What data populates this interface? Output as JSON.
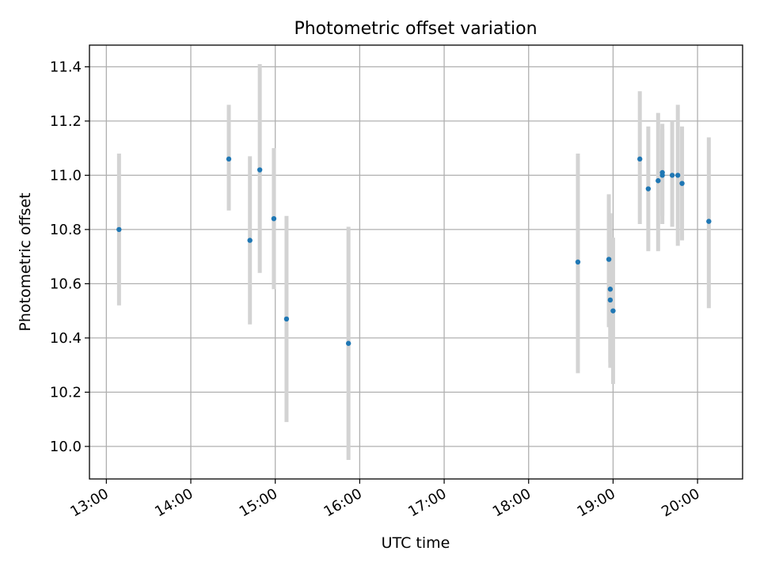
{
  "chart_data": {
    "type": "scatter",
    "title": "Photometric offset variation",
    "xlabel": "UTC time",
    "ylabel": "Photometric offset",
    "x_unit": "hour-of-day",
    "xlim": [
      "12:48",
      "20:32"
    ],
    "ylim": [
      9.88,
      11.48
    ],
    "x_ticks": [
      {
        "time": "13:00",
        "label": "13:00"
      },
      {
        "time": "14:00",
        "label": "14:00"
      },
      {
        "time": "15:00",
        "label": "15:00"
      },
      {
        "time": "16:00",
        "label": "16:00"
      },
      {
        "time": "17:00",
        "label": "17:00"
      },
      {
        "time": "18:00",
        "label": "18:00"
      },
      {
        "time": "19:00",
        "label": "19:00"
      },
      {
        "time": "20:00",
        "label": "20:00"
      }
    ],
    "y_ticks": [
      10.0,
      10.2,
      10.4,
      10.6,
      10.8,
      11.0,
      11.2,
      11.4
    ],
    "y_tick_labels": [
      "10.0",
      "10.2",
      "10.4",
      "10.6",
      "10.8",
      "11.0",
      "11.2",
      "11.4"
    ],
    "grid": true,
    "point_color": "#1f77b4",
    "errorbar_color": "#d3d3d3",
    "points": [
      {
        "x": "13:09",
        "y": 10.8,
        "ylow": 10.52,
        "yhigh": 11.08
      },
      {
        "x": "14:27",
        "y": 11.06,
        "ylow": 10.87,
        "yhigh": 11.26
      },
      {
        "x": "14:42",
        "y": 10.76,
        "ylow": 10.45,
        "yhigh": 11.07
      },
      {
        "x": "14:49",
        "y": 11.02,
        "ylow": 10.64,
        "yhigh": 11.41
      },
      {
        "x": "14:59",
        "y": 10.84,
        "ylow": 10.58,
        "yhigh": 11.1
      },
      {
        "x": "15:08",
        "y": 10.47,
        "ylow": 10.09,
        "yhigh": 10.85
      },
      {
        "x": "15:52",
        "y": 10.38,
        "ylow": 9.95,
        "yhigh": 10.81
      },
      {
        "x": "18:35",
        "y": 10.68,
        "ylow": 10.27,
        "yhigh": 11.08
      },
      {
        "x": "18:57",
        "y": 10.69,
        "ylow": 10.44,
        "yhigh": 10.93
      },
      {
        "x": "18:58",
        "y": 10.58,
        "ylow": 10.29,
        "yhigh": 10.86
      },
      {
        "x": "18:58",
        "y": 10.54,
        "ylow": 10.31,
        "yhigh": 10.76
      },
      {
        "x": "19:00",
        "y": 10.5,
        "ylow": 10.23,
        "yhigh": 10.77
      },
      {
        "x": "19:19",
        "y": 11.06,
        "ylow": 10.82,
        "yhigh": 11.31
      },
      {
        "x": "19:25",
        "y": 10.95,
        "ylow": 10.72,
        "yhigh": 11.18
      },
      {
        "x": "19:32",
        "y": 10.98,
        "ylow": 10.72,
        "yhigh": 11.23
      },
      {
        "x": "19:35",
        "y": 11.0,
        "ylow": 10.82,
        "yhigh": 11.19
      },
      {
        "x": "19:35",
        "y": 11.01,
        "ylow": 10.85,
        "yhigh": 11.17
      },
      {
        "x": "19:42",
        "y": 11.0,
        "ylow": 10.81,
        "yhigh": 11.2
      },
      {
        "x": "19:46",
        "y": 11.0,
        "ylow": 10.74,
        "yhigh": 11.26
      },
      {
        "x": "19:49",
        "y": 10.97,
        "ylow": 10.76,
        "yhigh": 11.18
      },
      {
        "x": "20:08",
        "y": 10.83,
        "ylow": 10.51,
        "yhigh": 11.14
      }
    ]
  }
}
